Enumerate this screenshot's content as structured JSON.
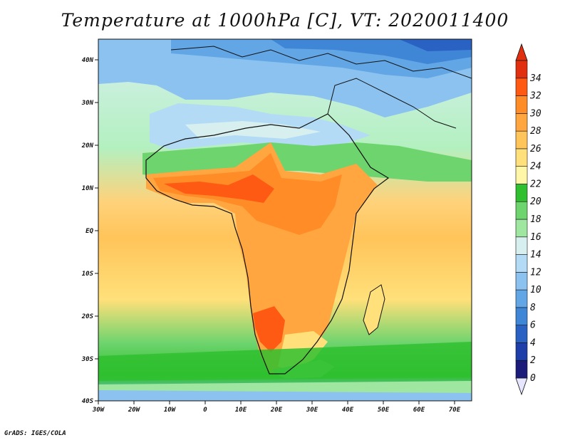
{
  "title": "Temperature at 1000hPa [C], VT: 2020011400",
  "credit": "GrADS: IGES/COLA",
  "map": {
    "lat_labels": [
      "40N",
      "30N",
      "20N",
      "10N",
      "EQ",
      "10S",
      "20S",
      "30S",
      "40S"
    ],
    "lon_labels": [
      "30W",
      "20W",
      "10W",
      "0",
      "10E",
      "20E",
      "30E",
      "40E",
      "50E",
      "60E",
      "70E"
    ]
  },
  "colorbar": {
    "levels": [
      "0",
      "2",
      "4",
      "6",
      "8",
      "10",
      "12",
      "14",
      "16",
      "18",
      "20",
      "22",
      "24",
      "26",
      "28",
      "30",
      "32",
      "34"
    ],
    "colors": [
      "#1b1b7a",
      "#1f3fa8",
      "#2a62c4",
      "#3f86d6",
      "#62a6e6",
      "#8cc2f0",
      "#b3dbf6",
      "#d7efef",
      "#9fe6a0",
      "#6ed46e",
      "#2fbf2f",
      "#fff6a8",
      "#ffe07a",
      "#ffc45a",
      "#ffa640",
      "#ff8c26",
      "#ff5a14",
      "#e03010"
    ]
  }
}
